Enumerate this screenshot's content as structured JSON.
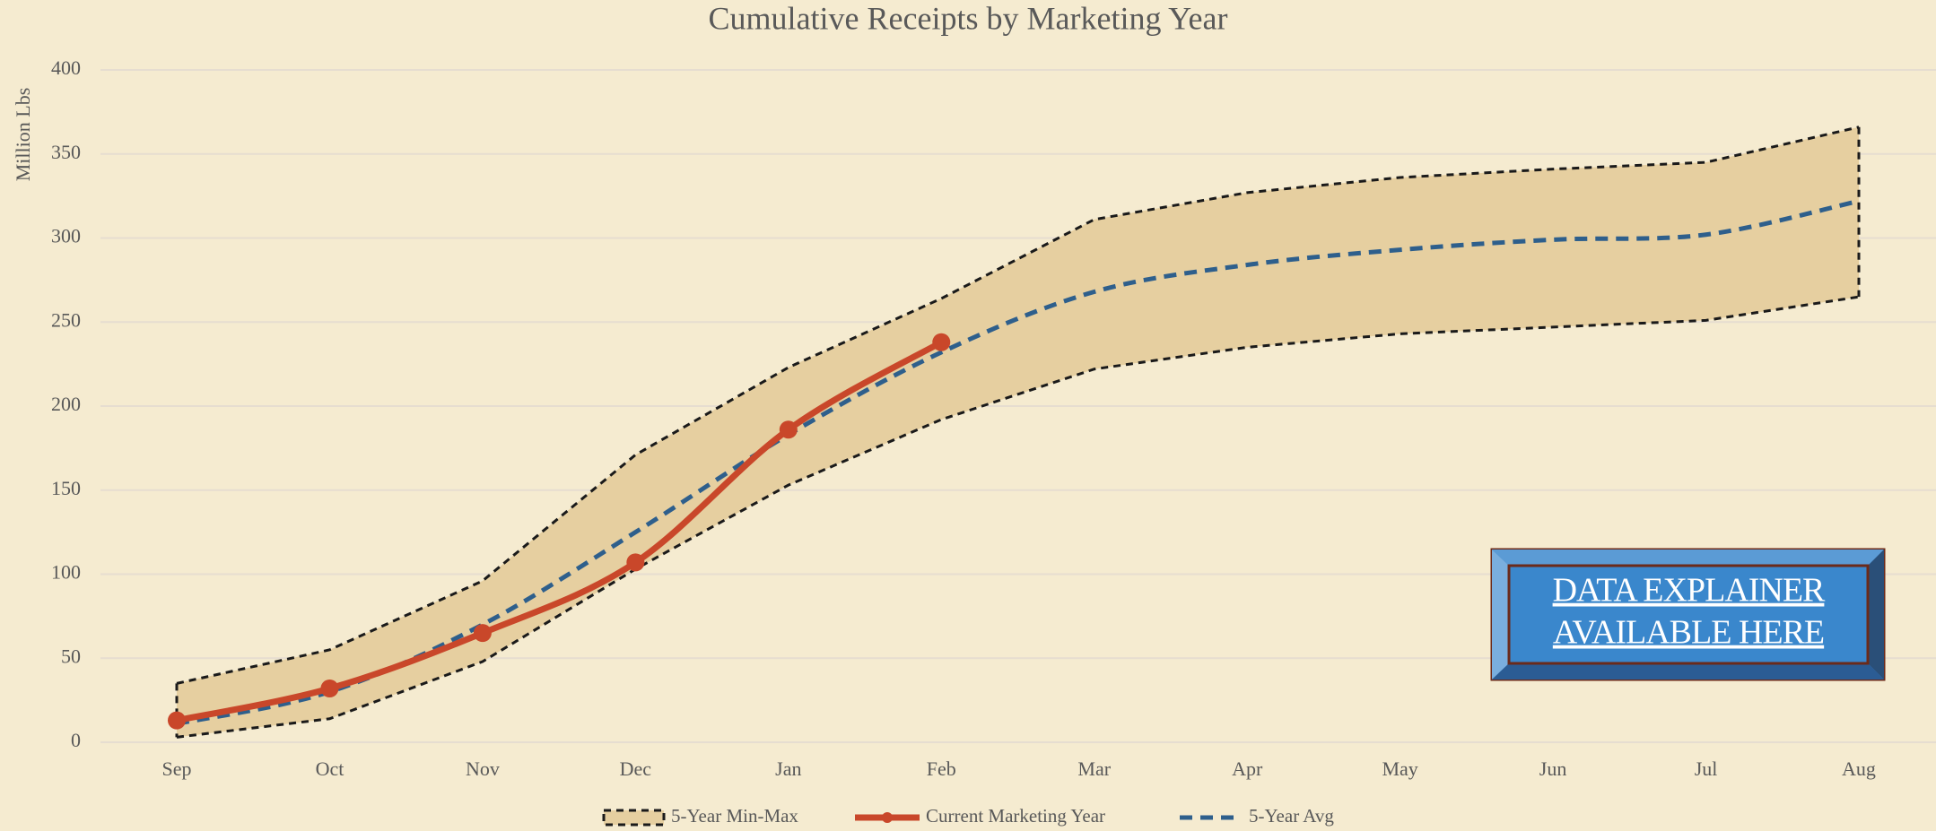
{
  "chart_data": {
    "type": "line",
    "title": "Cumulative Receipts by Marketing Year",
    "y_label": "Million Lbs",
    "categories": [
      "Sep",
      "Oct",
      "Nov",
      "Dec",
      "Jan",
      "Feb",
      "Mar",
      "Apr",
      "May",
      "Jun",
      "Jul",
      "Aug"
    ],
    "ylim": [
      0,
      400
    ],
    "yticks": [
      0,
      50,
      100,
      150,
      200,
      250,
      300,
      350,
      400
    ],
    "grid": true,
    "legend": "bottom",
    "band": {
      "name": "5-Year Min-Max",
      "color": "#e6cfa0",
      "low": [
        3,
        14,
        48,
        103,
        153,
        192,
        222,
        235,
        243,
        247,
        251,
        265
      ],
      "high": [
        35,
        55,
        96,
        171,
        223,
        264,
        311,
        327,
        336,
        341,
        345,
        366
      ]
    },
    "series": [
      {
        "name": "Current Marketing Year",
        "color": "#c9472a",
        "values": [
          13,
          32,
          65,
          107,
          186,
          238,
          null,
          null,
          null,
          null,
          null,
          null
        ]
      },
      {
        "name": "5-Year Avg",
        "color": "#2e5f8c",
        "values": [
          11,
          30,
          70,
          125,
          183,
          232,
          268,
          284,
          293,
          299,
          302,
          322
        ]
      }
    ]
  },
  "button": {
    "lines": [
      "DATA EXPLAINER",
      "AVAILABLE HERE"
    ]
  }
}
